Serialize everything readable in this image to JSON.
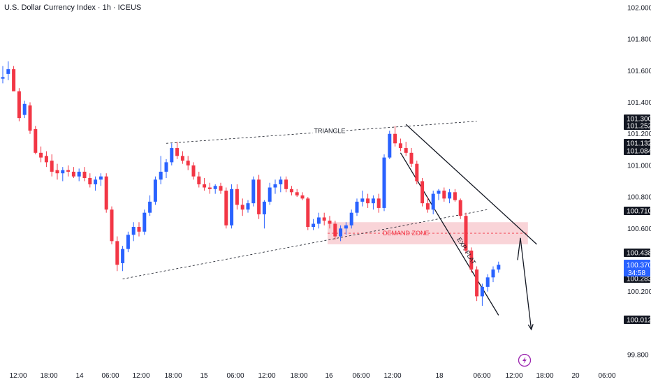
{
  "title": "U.S. Dollar Currency Index · 1h · ICEUS",
  "colors": {
    "up": "#2962ff",
    "down": "#f23645",
    "zone_fill": "#f7c5cb",
    "zone_text": "#f23645",
    "line": "#131722",
    "current": "#2962ff",
    "text": "#131722"
  },
  "chart_data": {
    "type": "candlestick",
    "title": "U.S. Dollar Currency Index · 1h · ICEUS",
    "ylim": [
      99.8,
      102.0
    ],
    "y_ticks": [
      "102.000",
      "101.800",
      "101.600",
      "101.400",
      "101.200",
      "101.000",
      "100.800",
      "100.600",
      "100.200",
      "99.800"
    ],
    "x_ticks": [
      "12:00",
      "18:00",
      "14",
      "06:00",
      "12:00",
      "18:00",
      "15",
      "06:00",
      "12:00",
      "18:00",
      "16",
      "06:00",
      "12:00",
      "18",
      "06:00",
      "12:00",
      "18:00",
      "20",
      "06:00"
    ],
    "price_tags": [
      {
        "label": "101.300",
        "value": 101.3
      },
      {
        "label": "101.252",
        "value": 101.252
      },
      {
        "label": "101.132",
        "value": 101.132
      },
      {
        "label": "101.084",
        "value": 101.084
      },
      {
        "label": "100.710",
        "value": 100.71
      },
      {
        "label": "100.438",
        "value": 100.438
      },
      {
        "label": "100.283",
        "value": 100.283
      },
      {
        "label": "100.012",
        "value": 100.012
      }
    ],
    "current_price": {
      "label": "100.370",
      "countdown": "34:58",
      "value": 100.37
    },
    "annotations": {
      "triangle_label": "TRIANGLE",
      "demand_zone_label": "DEMAND ZONE",
      "exp_flat_label": "EXP. FLAT"
    },
    "demand_zone": [
      100.5,
      100.64
    ],
    "triangle_upper": [
      {
        "bar": 30,
        "value": 101.14
      },
      {
        "bar": 87,
        "value": 101.28
      }
    ],
    "triangle_lower": [
      {
        "bar": 22,
        "value": 100.28
      },
      {
        "bar": 89,
        "value": 100.72
      }
    ],
    "exp_flat_upper": [
      {
        "bar": 74,
        "value": 101.26
      },
      {
        "bar": 98,
        "value": 100.5
      }
    ],
    "exp_flat_lower": [
      {
        "bar": 73,
        "value": 101.08
      },
      {
        "bar": 91,
        "value": 100.05
      }
    ],
    "projection": [
      {
        "bar": 95,
        "value": 100.54
      },
      {
        "bar": 97,
        "value": 99.96
      }
    ],
    "candles": [
      {
        "o": 101.55,
        "h": 101.63,
        "l": 101.52,
        "c": 101.56
      },
      {
        "o": 101.58,
        "h": 101.66,
        "l": 101.54,
        "c": 101.61
      },
      {
        "o": 101.61,
        "h": 101.63,
        "l": 101.48,
        "c": 101.47
      },
      {
        "o": 101.47,
        "h": 101.49,
        "l": 101.28,
        "c": 101.3
      },
      {
        "o": 101.32,
        "h": 101.41,
        "l": 101.3,
        "c": 101.39
      },
      {
        "o": 101.38,
        "h": 101.4,
        "l": 101.2,
        "c": 101.22
      },
      {
        "o": 101.23,
        "h": 101.25,
        "l": 101.07,
        "c": 101.08
      },
      {
        "o": 101.08,
        "h": 101.12,
        "l": 101.02,
        "c": 101.05
      },
      {
        "o": 101.06,
        "h": 101.09,
        "l": 100.99,
        "c": 101.02
      },
      {
        "o": 101.03,
        "h": 101.07,
        "l": 100.93,
        "c": 100.96
      },
      {
        "o": 100.97,
        "h": 101.01,
        "l": 100.91,
        "c": 100.95
      },
      {
        "o": 100.95,
        "h": 100.99,
        "l": 100.9,
        "c": 100.97
      },
      {
        "o": 100.97,
        "h": 101.0,
        "l": 100.93,
        "c": 100.96
      },
      {
        "o": 100.96,
        "h": 100.99,
        "l": 100.92,
        "c": 100.93
      },
      {
        "o": 100.93,
        "h": 100.98,
        "l": 100.9,
        "c": 100.96
      },
      {
        "o": 100.96,
        "h": 100.99,
        "l": 100.9,
        "c": 100.92
      },
      {
        "o": 100.92,
        "h": 100.95,
        "l": 100.86,
        "c": 100.88
      },
      {
        "o": 100.88,
        "h": 100.93,
        "l": 100.84,
        "c": 100.91
      },
      {
        "o": 100.91,
        "h": 100.95,
        "l": 100.87,
        "c": 100.93
      },
      {
        "o": 100.93,
        "h": 100.95,
        "l": 100.7,
        "c": 100.72
      },
      {
        "o": 100.72,
        "h": 100.74,
        "l": 100.5,
        "c": 100.52
      },
      {
        "o": 100.52,
        "h": 100.55,
        "l": 100.33,
        "c": 100.37
      },
      {
        "o": 100.38,
        "h": 100.49,
        "l": 100.33,
        "c": 100.47
      },
      {
        "o": 100.47,
        "h": 100.58,
        "l": 100.45,
        "c": 100.56
      },
      {
        "o": 100.56,
        "h": 100.64,
        "l": 100.52,
        "c": 100.61
      },
      {
        "o": 100.61,
        "h": 100.64,
        "l": 100.55,
        "c": 100.58
      },
      {
        "o": 100.58,
        "h": 100.72,
        "l": 100.56,
        "c": 100.7
      },
      {
        "o": 100.7,
        "h": 100.81,
        "l": 100.68,
        "c": 100.77
      },
      {
        "o": 100.77,
        "h": 100.93,
        "l": 100.75,
        "c": 100.91
      },
      {
        "o": 100.91,
        "h": 101.06,
        "l": 100.88,
        "c": 100.96
      },
      {
        "o": 100.96,
        "h": 101.04,
        "l": 100.92,
        "c": 101.02
      },
      {
        "o": 101.02,
        "h": 101.14,
        "l": 101.0,
        "c": 101.11
      },
      {
        "o": 101.11,
        "h": 101.15,
        "l": 101.04,
        "c": 101.06
      },
      {
        "o": 101.06,
        "h": 101.09,
        "l": 101.01,
        "c": 101.03
      },
      {
        "o": 101.03,
        "h": 101.06,
        "l": 100.97,
        "c": 101.0
      },
      {
        "o": 101.0,
        "h": 101.02,
        "l": 100.91,
        "c": 100.93
      },
      {
        "o": 100.93,
        "h": 100.96,
        "l": 100.86,
        "c": 100.88
      },
      {
        "o": 100.88,
        "h": 100.92,
        "l": 100.84,
        "c": 100.86
      },
      {
        "o": 100.86,
        "h": 100.89,
        "l": 100.82,
        "c": 100.85
      },
      {
        "o": 100.85,
        "h": 100.88,
        "l": 100.82,
        "c": 100.87
      },
      {
        "o": 100.87,
        "h": 100.89,
        "l": 100.82,
        "c": 100.84
      },
      {
        "o": 100.84,
        "h": 100.86,
        "l": 100.6,
        "c": 100.62
      },
      {
        "o": 100.62,
        "h": 100.88,
        "l": 100.6,
        "c": 100.85
      },
      {
        "o": 100.85,
        "h": 100.88,
        "l": 100.72,
        "c": 100.75
      },
      {
        "o": 100.75,
        "h": 100.79,
        "l": 100.68,
        "c": 100.72
      },
      {
        "o": 100.72,
        "h": 100.78,
        "l": 100.7,
        "c": 100.76
      },
      {
        "o": 100.76,
        "h": 100.93,
        "l": 100.74,
        "c": 100.91
      },
      {
        "o": 100.91,
        "h": 100.94,
        "l": 100.66,
        "c": 100.69
      },
      {
        "o": 100.69,
        "h": 100.78,
        "l": 100.6,
        "c": 100.77
      },
      {
        "o": 100.77,
        "h": 100.89,
        "l": 100.75,
        "c": 100.86
      },
      {
        "o": 100.86,
        "h": 100.91,
        "l": 100.82,
        "c": 100.88
      },
      {
        "o": 100.88,
        "h": 100.93,
        "l": 100.83,
        "c": 100.91
      },
      {
        "o": 100.91,
        "h": 100.93,
        "l": 100.83,
        "c": 100.85
      },
      {
        "o": 100.85,
        "h": 100.87,
        "l": 100.81,
        "c": 100.83
      },
      {
        "o": 100.83,
        "h": 100.85,
        "l": 100.8,
        "c": 100.81
      },
      {
        "o": 100.81,
        "h": 100.83,
        "l": 100.78,
        "c": 100.79
      },
      {
        "o": 100.79,
        "h": 100.8,
        "l": 100.59,
        "c": 100.61
      },
      {
        "o": 100.61,
        "h": 100.66,
        "l": 100.59,
        "c": 100.63
      },
      {
        "o": 100.63,
        "h": 100.7,
        "l": 100.6,
        "c": 100.67
      },
      {
        "o": 100.67,
        "h": 100.7,
        "l": 100.62,
        "c": 100.65
      },
      {
        "o": 100.65,
        "h": 100.68,
        "l": 100.6,
        "c": 100.63
      },
      {
        "o": 100.63,
        "h": 100.65,
        "l": 100.53,
        "c": 100.55
      },
      {
        "o": 100.55,
        "h": 100.62,
        "l": 100.52,
        "c": 100.6
      },
      {
        "o": 100.6,
        "h": 100.64,
        "l": 100.56,
        "c": 100.62
      },
      {
        "o": 100.62,
        "h": 100.72,
        "l": 100.6,
        "c": 100.7
      },
      {
        "o": 100.7,
        "h": 100.79,
        "l": 100.68,
        "c": 100.77
      },
      {
        "o": 100.77,
        "h": 100.84,
        "l": 100.74,
        "c": 100.79
      },
      {
        "o": 100.79,
        "h": 100.82,
        "l": 100.73,
        "c": 100.76
      },
      {
        "o": 100.76,
        "h": 100.81,
        "l": 100.72,
        "c": 100.79
      },
      {
        "o": 100.79,
        "h": 100.82,
        "l": 100.7,
        "c": 100.73
      },
      {
        "o": 100.73,
        "h": 101.07,
        "l": 100.71,
        "c": 101.05
      },
      {
        "o": 101.05,
        "h": 101.22,
        "l": 101.04,
        "c": 101.2
      },
      {
        "o": 101.2,
        "h": 101.25,
        "l": 101.12,
        "c": 101.14
      },
      {
        "o": 101.14,
        "h": 101.17,
        "l": 101.09,
        "c": 101.11
      },
      {
        "o": 101.11,
        "h": 101.15,
        "l": 101.06,
        "c": 101.08
      },
      {
        "o": 101.08,
        "h": 101.11,
        "l": 100.99,
        "c": 101.01
      },
      {
        "o": 101.01,
        "h": 101.03,
        "l": 100.88,
        "c": 100.9
      },
      {
        "o": 100.9,
        "h": 100.92,
        "l": 100.74,
        "c": 100.76
      },
      {
        "o": 100.76,
        "h": 100.8,
        "l": 100.7,
        "c": 100.72
      },
      {
        "o": 100.72,
        "h": 100.84,
        "l": 100.69,
        "c": 100.82
      },
      {
        "o": 100.82,
        "h": 100.85,
        "l": 100.78,
        "c": 100.84
      },
      {
        "o": 100.84,
        "h": 100.86,
        "l": 100.77,
        "c": 100.79
      },
      {
        "o": 100.79,
        "h": 100.85,
        "l": 100.76,
        "c": 100.83
      },
      {
        "o": 100.83,
        "h": 100.85,
        "l": 100.77,
        "c": 100.78
      },
      {
        "o": 100.78,
        "h": 100.79,
        "l": 100.66,
        "c": 100.68
      },
      {
        "o": 100.68,
        "h": 100.7,
        "l": 100.44,
        "c": 100.46
      },
      {
        "o": 100.46,
        "h": 100.48,
        "l": 100.32,
        "c": 100.34
      },
      {
        "o": 100.34,
        "h": 100.36,
        "l": 100.14,
        "c": 100.17
      },
      {
        "o": 100.17,
        "h": 100.25,
        "l": 100.11,
        "c": 100.23
      },
      {
        "o": 100.23,
        "h": 100.31,
        "l": 100.2,
        "c": 100.29
      },
      {
        "o": 100.29,
        "h": 100.36,
        "l": 100.26,
        "c": 100.34
      },
      {
        "o": 100.34,
        "h": 100.39,
        "l": 100.32,
        "c": 100.37
      }
    ]
  }
}
